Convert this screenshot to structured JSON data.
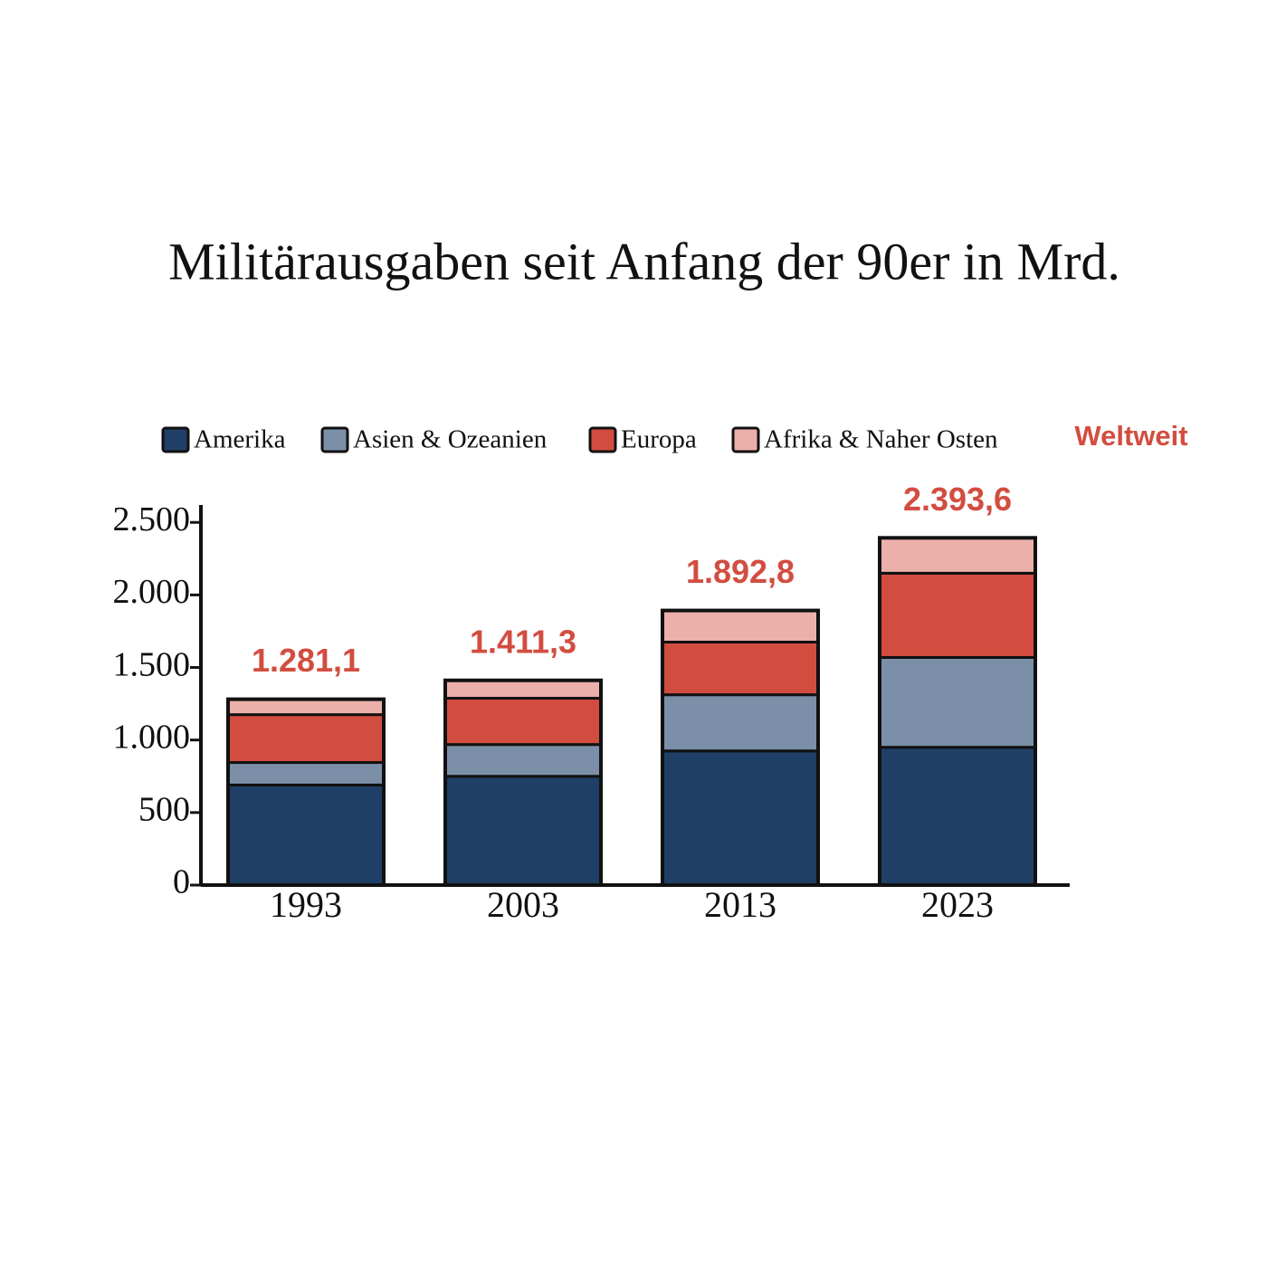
{
  "chart_data": {
    "type": "bar",
    "stacked": true,
    "title": "Militärausgaben seit Anfang der 90er in Mrd.",
    "categories": [
      "1993",
      "2003",
      "2013",
      "2023"
    ],
    "series": [
      {
        "name": "Amerika",
        "color": "#1f3f66",
        "values": [
          690,
          750,
          925,
          950
        ]
      },
      {
        "name": "Asien & Ozeanien",
        "color": "#7b8fa8",
        "values": [
          155,
          219,
          387,
          619
        ]
      },
      {
        "name": "Europa",
        "color": "#d24d40",
        "values": [
          330,
          319,
          363,
          581
        ]
      },
      {
        "name": "Afrika & Naher Osten",
        "color": "#ecb0ab",
        "values": [
          106.1,
          123.3,
          217.8,
          243.6
        ]
      }
    ],
    "totals": {
      "name": "Weltweit",
      "color": "#d24d40",
      "values": [
        1281.1,
        1411.3,
        1892.8,
        2393.6
      ],
      "value_labels": [
        "1.281,1",
        "1.411,3",
        "1.892,8",
        "2.393,6"
      ]
    },
    "ylim": [
      0,
      2620
    ],
    "yticks": [
      0,
      500,
      {
        "value": 1000,
        "label": "1.000"
      },
      {
        "value": 1500,
        "label": "1.500"
      },
      {
        "value": 2000,
        "label": "2.000"
      },
      {
        "value": 2500,
        "label": "2.500"
      }
    ],
    "grid": false
  }
}
